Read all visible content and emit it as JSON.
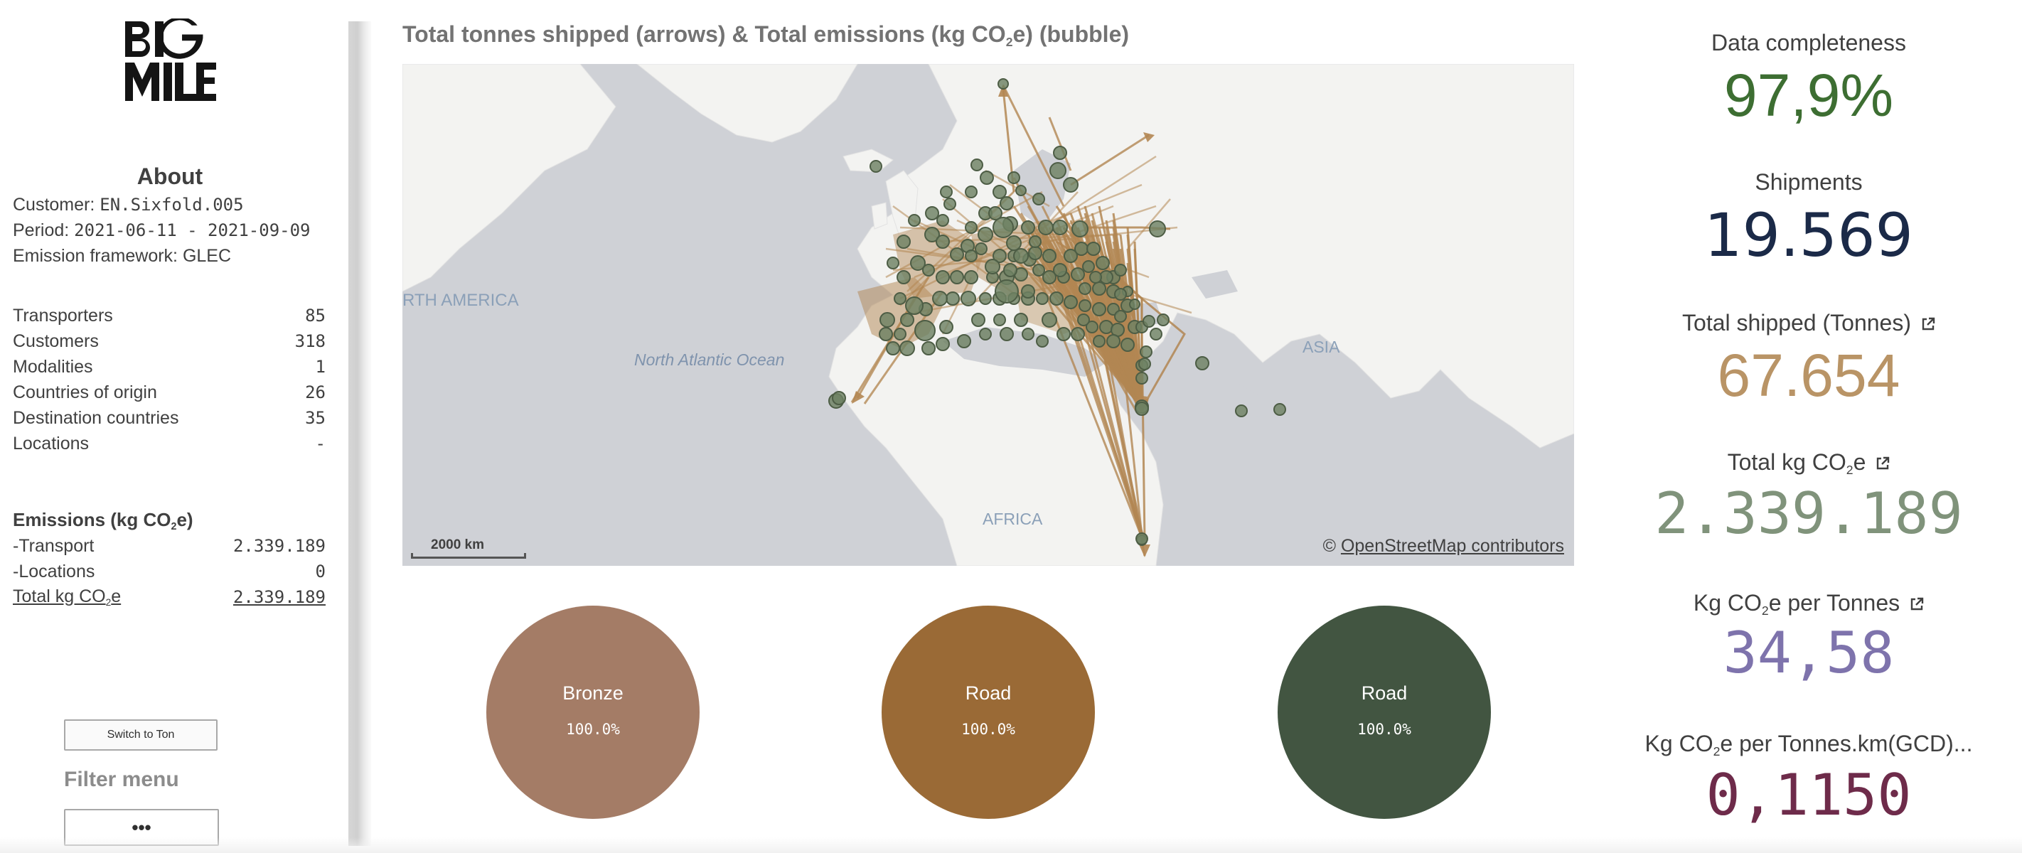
{
  "logo": {
    "text": "BIG MILE"
  },
  "about": {
    "title": "About",
    "customer_label": "Customer: ",
    "customer": "EN.Sixfold.005",
    "period_label": "Period: ",
    "period": "2021-06-11 - 2021-09-09",
    "framework": "Emission framework: GLEC"
  },
  "stats": [
    {
      "label": "Transporters",
      "value": "85"
    },
    {
      "label": "Customers",
      "value": "318"
    },
    {
      "label": "Modalities",
      "value": "1"
    },
    {
      "label": "Countries of origin",
      "value": "26"
    },
    {
      "label": "Destination countries",
      "value": "35"
    },
    {
      "label": "Locations",
      "value": "-"
    }
  ],
  "emissions": {
    "heading_pre": "Emissions (kg CO",
    "heading_sub": "2",
    "heading_post": "e)",
    "rows": [
      {
        "label": "-Transport",
        "value": "2.339.189"
      },
      {
        "label": "-Locations",
        "value": "0"
      }
    ],
    "total_label_pre": "Total kg CO",
    "total_label_sub": "2",
    "total_label_post": "e",
    "total_value": "2.339.189"
  },
  "controls": {
    "switch_label": "Switch to Ton",
    "filter_label": "Filter menu",
    "more_label": "•••"
  },
  "map": {
    "title_pre": "Total tonnes shipped (arrows) & Total emissions (kg CO",
    "title_sub": "2",
    "title_post": "e) (bubble)",
    "scale_label": "2000 km",
    "credit_prefix": "© ",
    "credit_link": "OpenStreetMap contributors",
    "labels": {
      "north_america": "RTH AMERICA",
      "ocean": "North Atlantic Ocean",
      "asia": "ASIA",
      "africa": "AFRICA"
    }
  },
  "circles": [
    {
      "label": "Bronze",
      "percent": "100.0%",
      "color": "#a47c66"
    },
    {
      "label": "Road",
      "percent": "100.0%",
      "color": "#9a6a36"
    },
    {
      "label": "Road",
      "percent": "100.0%",
      "color": "#425541"
    }
  ],
  "kpis": {
    "completeness": {
      "label": "Data completeness",
      "value": "97,9%",
      "color": "#3d6e32"
    },
    "shipments": {
      "label": "Shipments",
      "value": "19.569",
      "color": "#1b2a48"
    },
    "total_shipped": {
      "label": "Total shipped (Tonnes)",
      "value": "67.654",
      "color": "#b99466"
    },
    "total_co2": {
      "label_pre": "Total kg CO",
      "label_sub": "2",
      "label_post": "e",
      "value": "2.339.189",
      "color": "#80937b"
    },
    "per_tonne": {
      "label_pre": "Kg CO",
      "label_sub": "2",
      "label_post": "e per Tonnes",
      "value": "34,58",
      "color": "#7e73ac"
    },
    "per_tkm": {
      "label_pre": "Kg CO",
      "label_sub": "2",
      "label_post": "e per Tonnes.km(GCD)...",
      "value": "0,1150",
      "color": "#6e2b4a"
    }
  },
  "icons": {
    "external_link": "external-link-icon"
  }
}
